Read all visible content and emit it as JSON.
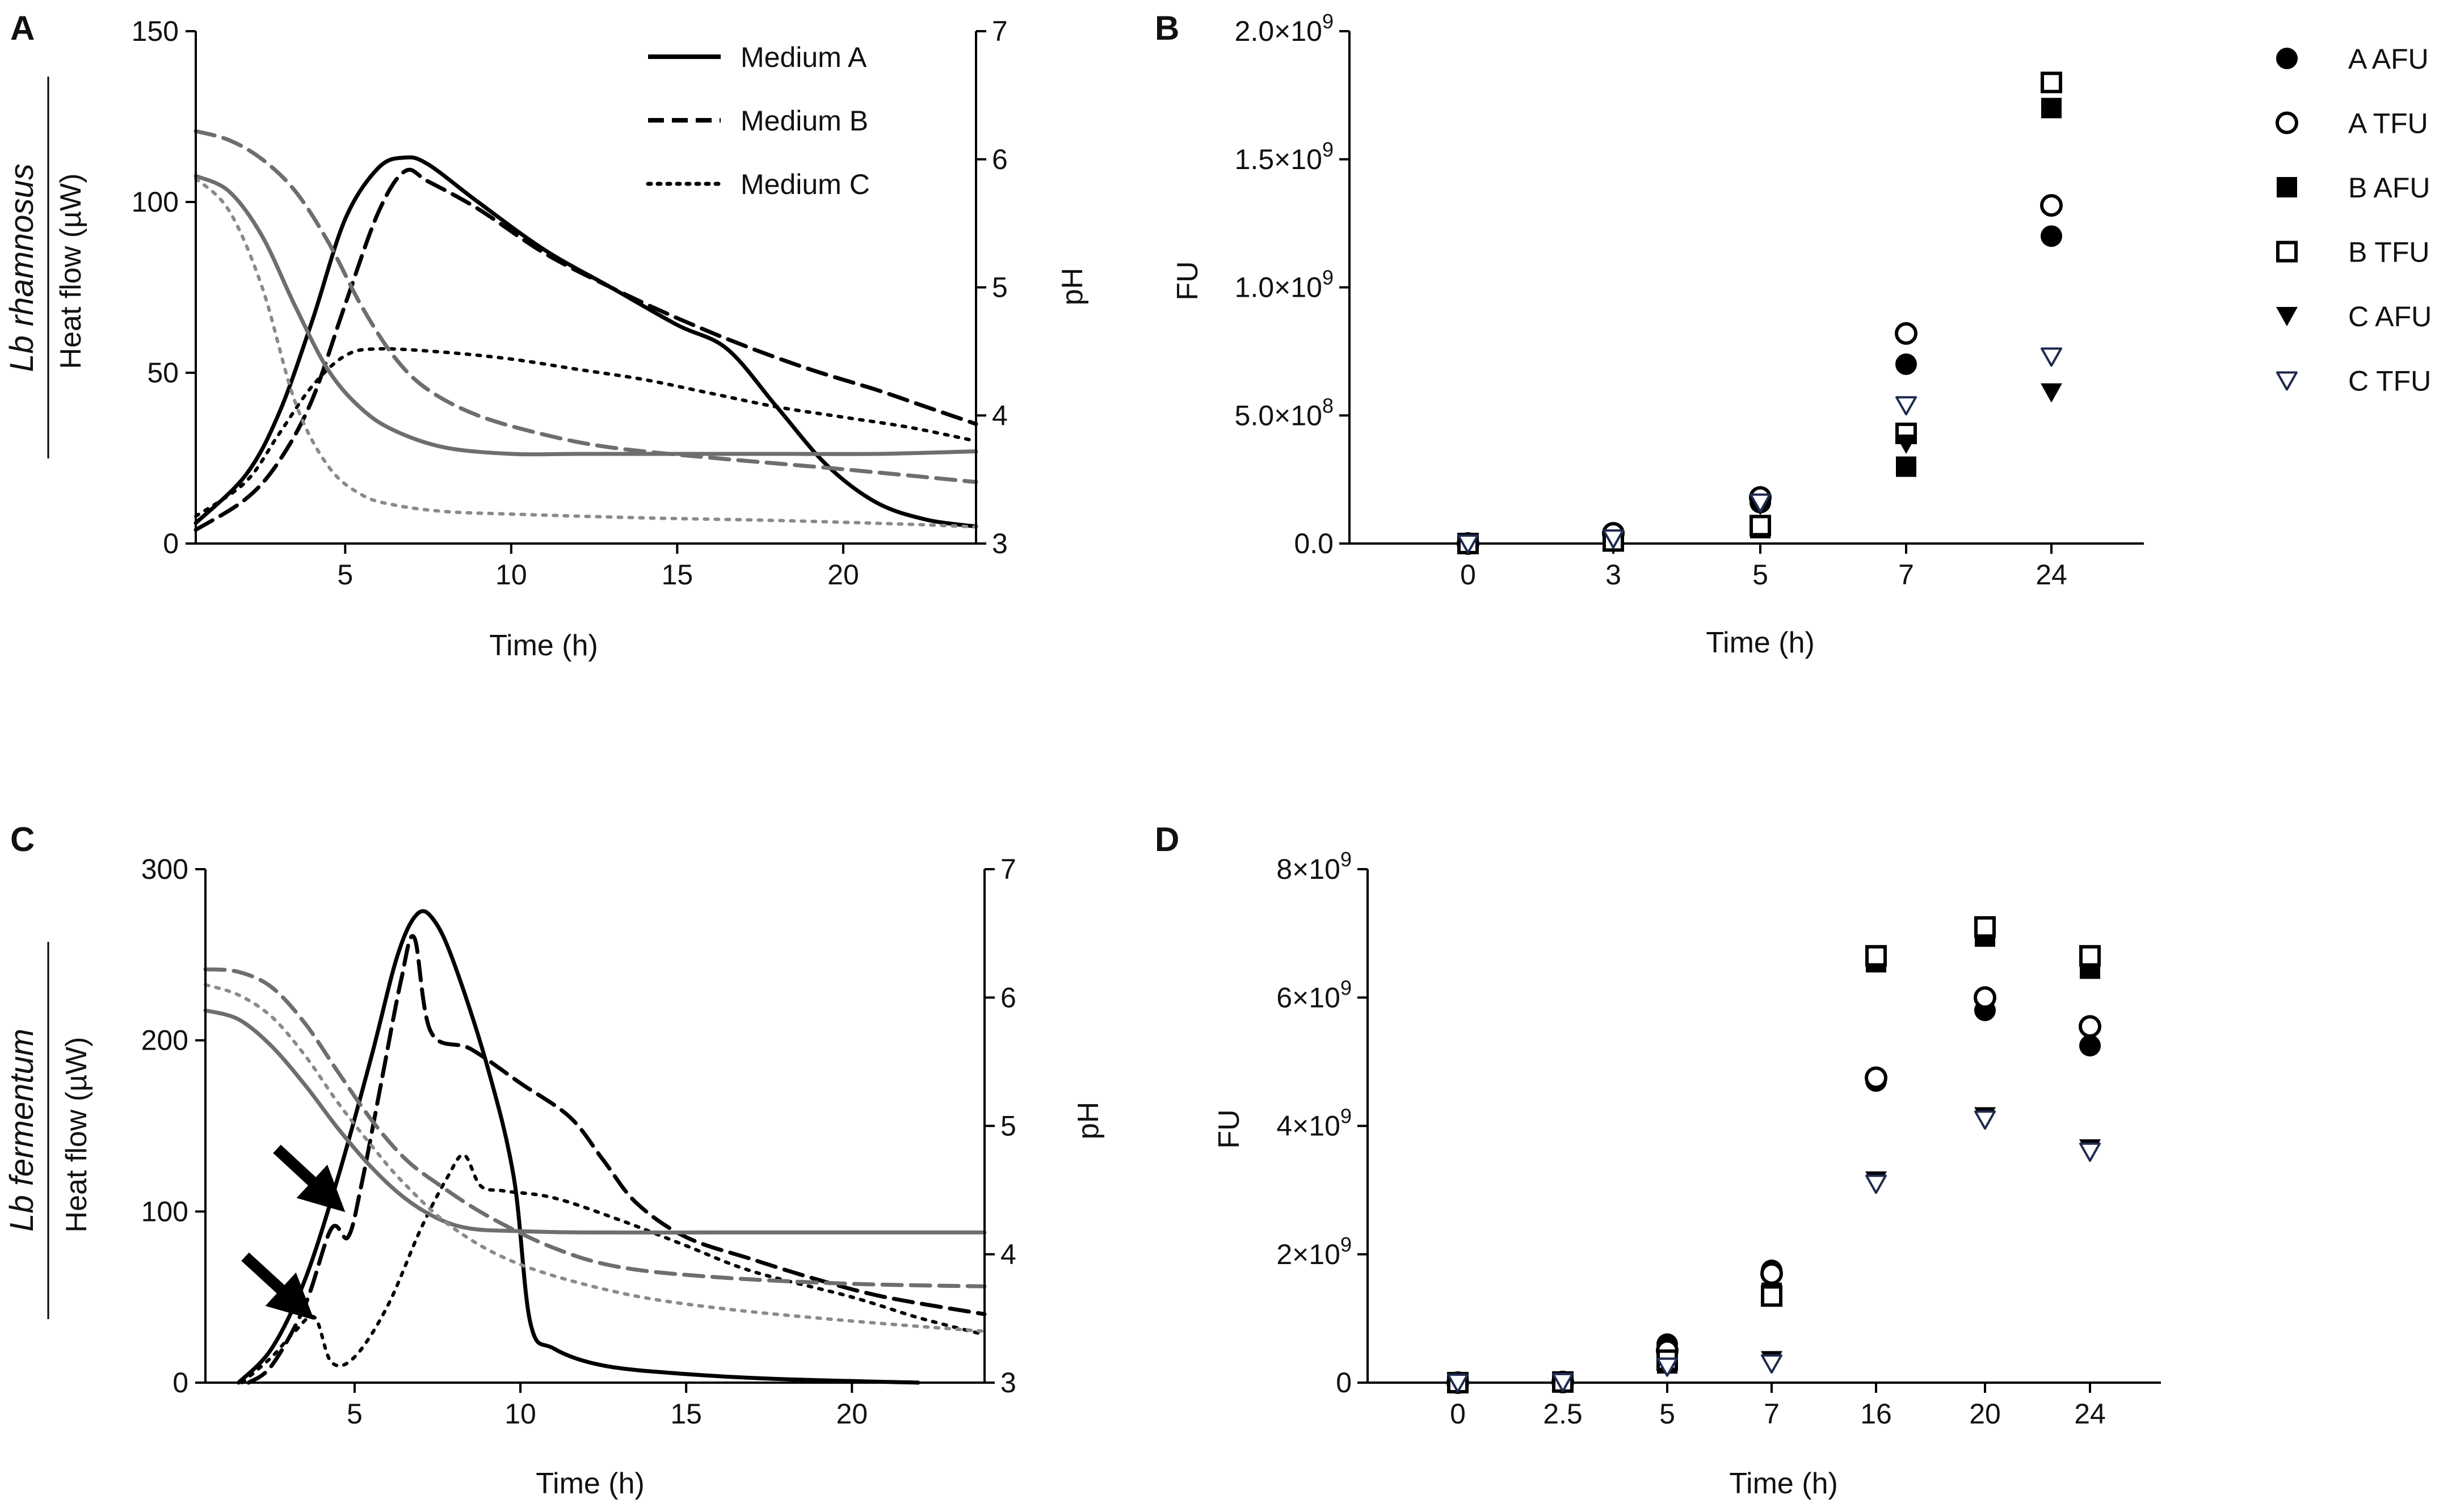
{
  "colors": {
    "black": "#000000",
    "grey": "#6e6e6e",
    "lightgrey": "#8a8a8a",
    "blue_edge": "#1f2a4f"
  },
  "chart_data": [
    {
      "panel": "A",
      "type": "line",
      "species_label": "Lb rhamnosus",
      "xlabel": "Time (h)",
      "ylabel": "Heat flow (µW)",
      "y2label": "pH",
      "xlim": [
        0.5,
        24
      ],
      "ylim": [
        0,
        150
      ],
      "y2lim": [
        3,
        7
      ],
      "xticks": [
        "5",
        "10",
        "15",
        "20"
      ],
      "yticks": [
        "0",
        "50",
        "100",
        "150"
      ],
      "y2ticks": [
        "3",
        "4",
        "5",
        "6",
        "7"
      ],
      "legend": [
        {
          "label": "Medium A",
          "style": "solid"
        },
        {
          "label": "Medium B",
          "style": "dashed"
        },
        {
          "label": "Medium C",
          "style": "dotted"
        }
      ],
      "series": [
        {
          "name": "Medium A heat flow",
          "axis": "left",
          "color": "#000000",
          "style": "solid",
          "x": [
            0.5,
            2,
            3,
            4,
            5,
            6,
            6.8,
            7.5,
            9,
            11,
            13,
            15,
            16.5,
            18,
            19.5,
            21,
            22.5,
            24
          ],
          "y": [
            6,
            20,
            38,
            65,
            95,
            110,
            113,
            111,
            100,
            86,
            75,
            64,
            57,
            40,
            23,
            12,
            7,
            5
          ]
        },
        {
          "name": "Medium B heat flow",
          "axis": "left",
          "color": "#000000",
          "style": "dashed",
          "x": [
            0.5,
            2,
            3,
            4,
            5,
            6,
            6.8,
            7.5,
            9,
            11,
            13,
            15,
            17,
            19,
            21,
            22.5,
            24
          ],
          "y": [
            4,
            13,
            24,
            42,
            70,
            97,
            109,
            106,
            98,
            85,
            75,
            66,
            58,
            51,
            45,
            40,
            35
          ]
        },
        {
          "name": "Medium C heat flow",
          "axis": "left",
          "color": "#000000",
          "style": "dotted",
          "x": [
            0.5,
            2,
            3,
            4,
            5,
            6,
            8,
            10,
            12,
            14,
            16,
            18,
            20,
            22,
            24
          ],
          "y": [
            8,
            18,
            32,
            46,
            55,
            57,
            56,
            54,
            51,
            48,
            44,
            40,
            37,
            34,
            30
          ]
        },
        {
          "name": "Medium A pH",
          "axis": "right",
          "color": "#6e6e6e",
          "style": "solid",
          "x": [
            0.5,
            1.5,
            2.5,
            3.5,
            4.5,
            5.5,
            6.5,
            8,
            10,
            12,
            15,
            18,
            21,
            24
          ],
          "y": [
            5.87,
            5.75,
            5.4,
            4.85,
            4.35,
            4.05,
            3.88,
            3.75,
            3.7,
            3.7,
            3.7,
            3.7,
            3.7,
            3.72
          ]
        },
        {
          "name": "Medium B pH",
          "axis": "right",
          "color": "#6e6e6e",
          "style": "dashed",
          "x": [
            0.5,
            1.5,
            2.5,
            3.5,
            4.5,
            5.5,
            6.5,
            7.5,
            9,
            11,
            13,
            16,
            20,
            24
          ],
          "y": [
            6.22,
            6.15,
            6.0,
            5.75,
            5.35,
            4.85,
            4.45,
            4.2,
            4.0,
            3.85,
            3.75,
            3.67,
            3.58,
            3.48
          ]
        },
        {
          "name": "Medium C pH",
          "axis": "right",
          "color": "#8a8a8a",
          "style": "dotted",
          "x": [
            0.5,
            1.5,
            2.5,
            3.5,
            4.5,
            5.5,
            6.5,
            8,
            10,
            14,
            18,
            22,
            24
          ],
          "y": [
            5.85,
            5.6,
            5.0,
            4.1,
            3.6,
            3.38,
            3.3,
            3.25,
            3.23,
            3.2,
            3.18,
            3.15,
            3.13
          ]
        }
      ]
    },
    {
      "panel": "B",
      "type": "scatter",
      "xlabel": "Time (h)",
      "ylabel": "FU",
      "categories": [
        "0",
        "3",
        "5",
        "7",
        "24"
      ],
      "ylim": [
        0,
        2000000000
      ],
      "yticks": [
        {
          "value": 0,
          "mantissa": "0.0",
          "exp": ""
        },
        {
          "value": 500000000,
          "mantissa": "5.0×10",
          "exp": "8"
        },
        {
          "value": 1000000000,
          "mantissa": "1.0×10",
          "exp": "9"
        },
        {
          "value": 1500000000,
          "mantissa": "1.5×10",
          "exp": "9"
        },
        {
          "value": 2000000000,
          "mantissa": "2.0×10",
          "exp": "9"
        }
      ],
      "legend": [
        {
          "label": "A AFU",
          "marker": "circle-filled"
        },
        {
          "label": "A TFU",
          "marker": "circle-open"
        },
        {
          "label": "B AFU",
          "marker": "square-filled"
        },
        {
          "label": "B TFU",
          "marker": "square-open"
        },
        {
          "label": "C AFU",
          "marker": "triangle-filled"
        },
        {
          "label": "C TFU",
          "marker": "triangle-open"
        }
      ],
      "series": [
        {
          "name": "A AFU",
          "marker": "circle-filled",
          "values": [
            0,
            30000000,
            160000000,
            700000000,
            1200000000
          ]
        },
        {
          "name": "A TFU",
          "marker": "circle-open",
          "values": [
            0,
            40000000,
            180000000,
            820000000,
            1320000000
          ]
        },
        {
          "name": "B AFU",
          "marker": "square-filled",
          "values": [
            0,
            10000000,
            60000000,
            300000000,
            1700000000
          ]
        },
        {
          "name": "B TFU",
          "marker": "square-open",
          "values": [
            0,
            10000000,
            70000000,
            430000000,
            1800000000
          ]
        },
        {
          "name": "C AFU",
          "marker": "triangle-filled",
          "values": [
            0,
            20000000,
            150000000,
            390000000,
            590000000
          ]
        },
        {
          "name": "C TFU",
          "marker": "triangle-open",
          "values": [
            0,
            20000000,
            160000000,
            540000000,
            730000000
          ]
        }
      ]
    },
    {
      "panel": "C",
      "type": "line",
      "species_label": "Lb fermentum",
      "xlabel": "Time (h)",
      "ylabel": "Heat flow (µW)",
      "y2label": "pH",
      "xlim": [
        0.5,
        24
      ],
      "ylim": [
        0,
        300
      ],
      "y2lim": [
        3,
        7
      ],
      "xticks": [
        "5",
        "10",
        "15",
        "20"
      ],
      "yticks": [
        "0",
        "100",
        "200",
        "300"
      ],
      "y2ticks": [
        "3",
        "4",
        "5",
        "6",
        "7"
      ],
      "annotations": [
        {
          "type": "arrow",
          "target_x": 4.7,
          "target_y": 105
        },
        {
          "type": "arrow",
          "target_x": 3.7,
          "target_y": 38
        }
      ],
      "series": [
        {
          "name": "Medium A heat flow",
          "axis": "left",
          "color": "#000000",
          "style": "solid",
          "x": [
            1.5,
            2.5,
            3.5,
            4.5,
            5.5,
            6.3,
            6.9,
            7.4,
            8,
            9,
            9.8,
            10.3,
            11,
            12.5,
            15,
            18,
            22
          ],
          "y": [
            0,
            20,
            60,
            120,
            190,
            250,
            274,
            270,
            245,
            185,
            120,
            35,
            20,
            10,
            5,
            2,
            0
          ]
        },
        {
          "name": "Medium B heat flow",
          "axis": "left",
          "color": "#000000",
          "style": "dashed",
          "x": [
            1.8,
            2.5,
            3.5,
            4.3,
            4.8,
            5.2,
            5.8,
            6.4,
            6.8,
            7.3,
            8.5,
            10,
            11.5,
            12.5,
            13.5,
            15,
            17,
            19,
            21,
            24
          ],
          "y": [
            0,
            10,
            45,
            90,
            85,
            115,
            175,
            235,
            260,
            205,
            195,
            175,
            155,
            130,
            105,
            85,
            72,
            60,
            50,
            40
          ]
        },
        {
          "name": "Medium C heat flow",
          "axis": "left",
          "color": "#000000",
          "style": "dotted",
          "x": [
            1.6,
            2.5,
            3.2,
            3.8,
            4.3,
            5,
            6,
            7,
            7.8,
            8.3,
            8.8,
            9.5,
            11,
            13,
            15,
            17,
            20,
            22,
            24
          ],
          "y": [
            0,
            15,
            30,
            38,
            12,
            15,
            45,
            90,
            120,
            133,
            115,
            112,
            108,
            95,
            80,
            65,
            50,
            38,
            28
          ]
        },
        {
          "name": "Medium A pH",
          "axis": "right",
          "color": "#6e6e6e",
          "style": "solid",
          "x": [
            0.5,
            1.5,
            2.5,
            3.5,
            4.5,
            5.5,
            6.5,
            7.5,
            8.5,
            10,
            12,
            16,
            20,
            24
          ],
          "y": [
            5.9,
            5.83,
            5.62,
            5.32,
            4.98,
            4.68,
            4.44,
            4.28,
            4.2,
            4.18,
            4.17,
            4.17,
            4.17,
            4.17
          ]
        },
        {
          "name": "Medium B pH",
          "axis": "right",
          "color": "#6e6e6e",
          "style": "dashed",
          "x": [
            0.5,
            1.5,
            2.5,
            3.5,
            4.5,
            5.5,
            6.5,
            7.5,
            9,
            11,
            13,
            16,
            20,
            24
          ],
          "y": [
            6.22,
            6.2,
            6.08,
            5.8,
            5.42,
            5.05,
            4.75,
            4.55,
            4.3,
            4.05,
            3.9,
            3.82,
            3.77,
            3.75
          ]
        },
        {
          "name": "Medium C pH",
          "axis": "right",
          "color": "#8a8a8a",
          "style": "dotted",
          "x": [
            0.5,
            1.5,
            2.5,
            3.5,
            4.5,
            5.5,
            6.5,
            8,
            10,
            13,
            16,
            20,
            24
          ],
          "y": [
            6.1,
            6.02,
            5.85,
            5.55,
            5.18,
            4.85,
            4.55,
            4.2,
            3.92,
            3.7,
            3.58,
            3.48,
            3.4
          ]
        }
      ]
    },
    {
      "panel": "D",
      "type": "scatter",
      "xlabel": "Time (h)",
      "ylabel": "FU",
      "categories": [
        "0",
        "2.5",
        "5",
        "7",
        "16",
        "20",
        "24"
      ],
      "ylim": [
        0,
        8000000000
      ],
      "yticks": [
        {
          "value": 0,
          "mantissa": "0",
          "exp": ""
        },
        {
          "value": 2000000000,
          "mantissa": "2×10",
          "exp": "9"
        },
        {
          "value": 4000000000,
          "mantissa": "4×10",
          "exp": "9"
        },
        {
          "value": 6000000000,
          "mantissa": "6×10",
          "exp": "9"
        },
        {
          "value": 8000000000,
          "mantissa": "8×10",
          "exp": "9"
        }
      ],
      "series": [
        {
          "name": "A AFU",
          "marker": "circle-filled",
          "values": [
            0,
            10000000,
            600000000,
            1750000000,
            4700000000,
            5800000000,
            5250000000
          ]
        },
        {
          "name": "A TFU",
          "marker": "circle-open",
          "values": [
            0,
            10000000,
            500000000,
            1700000000,
            4750000000,
            6000000000,
            5550000000
          ]
        },
        {
          "name": "B AFU",
          "marker": "square-filled",
          "values": [
            0,
            10000000,
            300000000,
            1400000000,
            6550000000,
            6950000000,
            6450000000
          ]
        },
        {
          "name": "B TFU",
          "marker": "square-open",
          "values": [
            0,
            10000000,
            350000000,
            1350000000,
            6650000000,
            7100000000,
            6650000000
          ]
        },
        {
          "name": "C AFU",
          "marker": "triangle-filled",
          "values": [
            0,
            10000000,
            250000000,
            350000000,
            3150000000,
            4150000000,
            3650000000
          ]
        },
        {
          "name": "C TFU",
          "marker": "triangle-open",
          "values": [
            0,
            10000000,
            250000000,
            300000000,
            3100000000,
            4100000000,
            3600000000
          ]
        }
      ]
    }
  ]
}
